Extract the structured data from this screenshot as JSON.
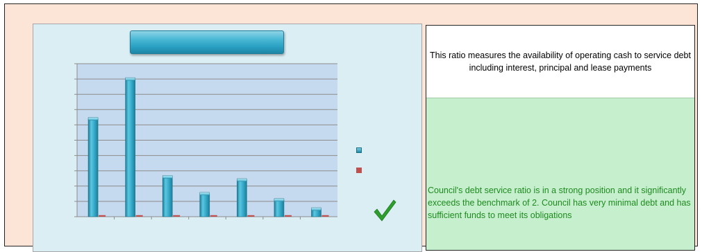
{
  "chart_data": {
    "type": "bar",
    "title": "",
    "xlabel": "",
    "ylabel": "",
    "ylim": [
      0,
      10
    ],
    "grid": true,
    "legend_position": "right",
    "categories": [
      "",
      "",
      "",
      "",
      "",
      "",
      ""
    ],
    "series": [
      {
        "color": "#31a8c9",
        "values": [
          6.4,
          9.0,
          2.6,
          1.5,
          2.4,
          1.1,
          0.5
        ]
      },
      {
        "color": "#c0504d",
        "values": [
          0.1,
          0.1,
          0.1,
          0.1,
          0.1,
          0.1,
          0.1
        ]
      }
    ]
  },
  "description": "This ratio measures the availability of operating cash to service debt including interest, principal and lease payments",
  "assessment": "Council's debt service ratio is in a strong position and it significantly exceeds the benchmark of 2. Council has very minimal debt and has sufficient funds to meet its obligations",
  "icons": {
    "status": "checkmark-icon"
  },
  "colors": {
    "panel_background": "#fce4d6",
    "chart_background": "#dbeef4",
    "plot_background": "#c5d9ef",
    "assessment_background": "#c6efce",
    "assessment_text": "#1e8a1e",
    "check_green": "#2e9e2e"
  }
}
